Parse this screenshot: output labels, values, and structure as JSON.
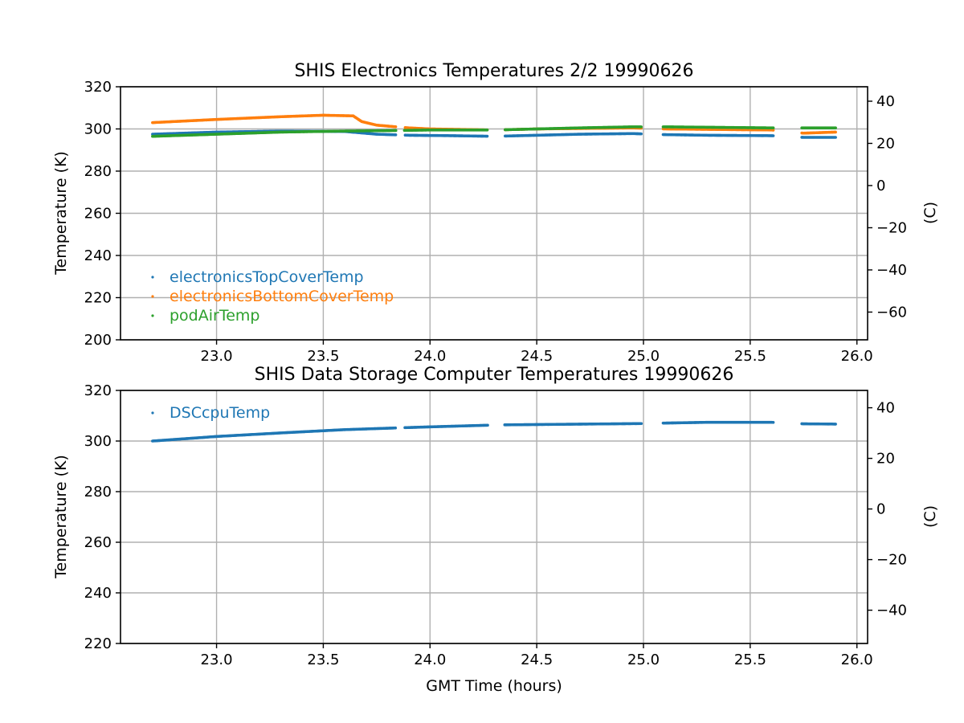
{
  "chart_data": [
    {
      "type": "scatter",
      "title": "SHIS Electronics Temperatures 2/2 19990626",
      "xlabel": "",
      "ylabel": "Temperature (K)",
      "ylabel_right": "(C)",
      "xlim": [
        22.55,
        26.05
      ],
      "ylim": [
        200,
        320
      ],
      "ylim_right": [
        -73.15,
        46.85
      ],
      "x_ticks": [
        "23.0",
        "23.5",
        "24.0",
        "24.5",
        "25.0",
        "25.5",
        "26.0"
      ],
      "y_ticks": [
        "200",
        "220",
        "240",
        "260",
        "280",
        "300",
        "320"
      ],
      "y_ticks_right": [
        "−60",
        "−40",
        "−20",
        "0",
        "20",
        "40"
      ],
      "grid": true,
      "legend_position": "lower-left",
      "data_gaps": [
        [
          23.84,
          23.88
        ],
        [
          24.27,
          24.35
        ],
        [
          24.99,
          25.09
        ],
        [
          25.61,
          25.74
        ]
      ],
      "series": [
        {
          "name": "electronicsTopCoverTemp",
          "color": "#1f77b4",
          "x": [
            22.7,
            23.0,
            23.3,
            23.6,
            23.75,
            23.9,
            24.1,
            24.3,
            24.5,
            24.7,
            24.95,
            25.1,
            25.3,
            25.6,
            25.75,
            25.9
          ],
          "y": [
            297.5,
            298.5,
            299.0,
            298.8,
            297.5,
            297.0,
            296.8,
            296.5,
            297.0,
            297.5,
            297.8,
            297.3,
            297.0,
            296.8,
            296.0,
            296.0
          ]
        },
        {
          "name": "electronicsBottomCoverTemp",
          "color": "#ff7f0e",
          "x": [
            22.7,
            23.0,
            23.3,
            23.5,
            23.64,
            23.68,
            23.75,
            23.9,
            24.0,
            24.3,
            24.5,
            24.95,
            25.1,
            25.6,
            25.75,
            25.9
          ],
          "y": [
            303.0,
            304.5,
            305.8,
            306.5,
            306.2,
            303.5,
            301.8,
            300.5,
            300.0,
            299.5,
            300.0,
            300.5,
            300.0,
            299.5,
            298.0,
            298.5
          ]
        },
        {
          "name": "podAirTemp",
          "color": "#2ca02c",
          "x": [
            22.7,
            23.0,
            23.3,
            23.6,
            23.8,
            24.0,
            24.3,
            24.5,
            24.7,
            24.95,
            25.1,
            25.3,
            25.6,
            25.75,
            25.9
          ],
          "y": [
            296.5,
            297.5,
            298.5,
            299.0,
            299.2,
            299.5,
            299.5,
            300.0,
            300.5,
            301.0,
            301.0,
            300.8,
            300.5,
            300.5,
            300.5
          ]
        }
      ]
    },
    {
      "type": "scatter",
      "title": "SHIS Data Storage Computer Temperatures 19990626",
      "xlabel": "GMT Time (hours)",
      "ylabel": "Temperature (K)",
      "ylabel_right": "(C)",
      "xlim": [
        22.55,
        26.05
      ],
      "ylim": [
        220,
        320
      ],
      "ylim_right": [
        -53.15,
        46.85
      ],
      "x_ticks": [
        "23.0",
        "23.5",
        "24.0",
        "24.5",
        "25.0",
        "25.5",
        "26.0"
      ],
      "y_ticks": [
        "220",
        "240",
        "260",
        "280",
        "300",
        "320"
      ],
      "y_ticks_right": [
        "−40",
        "−20",
        "0",
        "20",
        "40"
      ],
      "grid": true,
      "legend_position": "upper-left",
      "data_gaps": [
        [
          23.84,
          23.88
        ],
        [
          24.27,
          24.35
        ],
        [
          24.99,
          25.09
        ],
        [
          25.61,
          25.74
        ]
      ],
      "series": [
        {
          "name": "DSCcpuTemp",
          "color": "#1f77b4",
          "x": [
            22.7,
            23.0,
            23.3,
            23.6,
            23.85,
            24.0,
            24.25,
            24.35,
            24.6,
            24.99,
            25.1,
            25.3,
            25.6,
            25.75,
            25.9
          ],
          "y": [
            300.0,
            301.8,
            303.2,
            304.5,
            305.2,
            305.6,
            306.2,
            306.4,
            306.6,
            306.9,
            307.1,
            307.4,
            307.4,
            306.8,
            306.7
          ]
        }
      ]
    }
  ]
}
